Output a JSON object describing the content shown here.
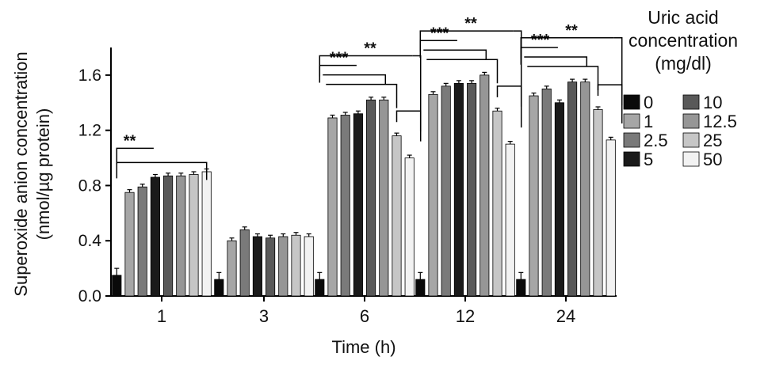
{
  "chart_data": {
    "type": "bar",
    "xlabel": "Time (h)",
    "ylabel_line1": "Superoxide anion concentration",
    "ylabel_line2": "(nmol/µg protein)",
    "ylim": [
      0,
      1.8
    ],
    "yticks": [
      "0.0",
      "0.4",
      "0.8",
      "1.2",
      "1.6"
    ],
    "categories": [
      "1",
      "3",
      "6",
      "12",
      "24"
    ],
    "legend": {
      "title_lines": [
        "Uric acid",
        "concentration",
        "(mg/dl)"
      ],
      "placement": "right"
    },
    "series": [
      {
        "name": "0",
        "color": "#0a0a0a",
        "values": [
          0.15,
          0.12,
          0.12,
          0.12,
          0.12
        ],
        "errors": [
          0.05,
          0.05,
          0.05,
          0.05,
          0.05
        ]
      },
      {
        "name": "1",
        "color": "#a6a6a6",
        "values": [
          0.75,
          0.4,
          1.29,
          1.46,
          1.45
        ],
        "errors": [
          0.02,
          0.02,
          0.02,
          0.02,
          0.02
        ]
      },
      {
        "name": "2.5",
        "color": "#7a7a7a",
        "values": [
          0.79,
          0.48,
          1.31,
          1.52,
          1.5
        ],
        "errors": [
          0.02,
          0.02,
          0.02,
          0.02,
          0.02
        ]
      },
      {
        "name": "5",
        "color": "#1a1a1a",
        "values": [
          0.86,
          0.43,
          1.32,
          1.54,
          1.4
        ],
        "errors": [
          0.02,
          0.02,
          0.02,
          0.02,
          0.02
        ]
      },
      {
        "name": "10",
        "color": "#595959",
        "values": [
          0.87,
          0.42,
          1.42,
          1.54,
          1.55
        ],
        "errors": [
          0.02,
          0.02,
          0.02,
          0.02,
          0.02
        ]
      },
      {
        "name": "12.5",
        "color": "#969696",
        "values": [
          0.87,
          0.43,
          1.42,
          1.6,
          1.55
        ],
        "errors": [
          0.02,
          0.02,
          0.02,
          0.02,
          0.02
        ]
      },
      {
        "name": "25",
        "color": "#c6c6c6",
        "values": [
          0.88,
          0.44,
          1.16,
          1.34,
          1.35
        ],
        "errors": [
          0.02,
          0.02,
          0.02,
          0.02,
          0.02
        ]
      },
      {
        "name": "50",
        "color": "#f2f2f2",
        "values": [
          0.9,
          0.43,
          1.0,
          1.1,
          1.13
        ],
        "errors": [
          0.02,
          0.02,
          0.02,
          0.02,
          0.02
        ]
      }
    ],
    "significance": [
      {
        "category": "1",
        "label": "**",
        "bracket": "double"
      },
      {
        "category": "6",
        "label": "***",
        "bracket": "triple"
      },
      {
        "category": "6",
        "label": "**",
        "bracket": "outer"
      },
      {
        "category": "12",
        "label": "***",
        "bracket": "triple"
      },
      {
        "category": "12",
        "label": "**",
        "bracket": "outer"
      },
      {
        "category": "24",
        "label": "***",
        "bracket": "triple"
      },
      {
        "category": "24",
        "label": "**",
        "bracket": "outer"
      }
    ]
  }
}
